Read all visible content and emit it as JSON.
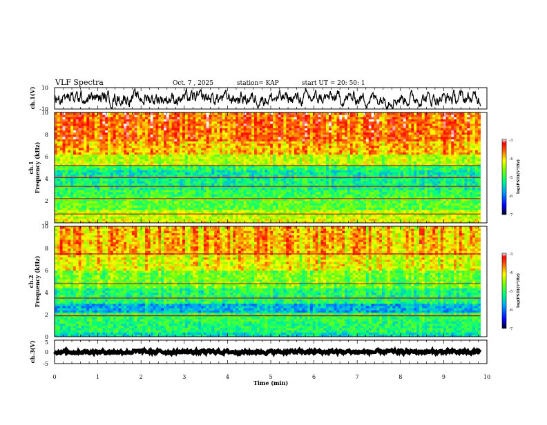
{
  "header": {
    "title": "VLF Spectra",
    "date": "Oct. 7 , 2025",
    "station": "station= KAP",
    "start": "start UT =  20: 50: 1"
  },
  "chart_data": [
    {
      "type": "line",
      "name": "ch1-waveform",
      "ylabel": "ch.1(V)",
      "ylim": [
        -10,
        10
      ],
      "yticks": [
        "10",
        "-10"
      ],
      "xlim": [
        0,
        10
      ],
      "data_end_min": 9.85,
      "series": [
        {
          "name": "ch.1",
          "description_mean": 0,
          "description_amplitude": 5
        }
      ]
    },
    {
      "type": "heatmap",
      "name": "ch1-spectrogram",
      "ylabel": "ch.1\nFrequency (kHz)",
      "ylabel_lines": [
        "ch.1",
        "Frequency (kHz)"
      ],
      "ylim": [
        0,
        10
      ],
      "yticks": [
        "0",
        "2",
        "4",
        "6",
        "8",
        "10"
      ],
      "xlim": [
        0,
        10
      ],
      "data_end_min": 9.85,
      "colorbar": {
        "label": "log(PSD)(V²/Hz)",
        "ticks": [
          "-3",
          "-4",
          "-5",
          "-6",
          "-7"
        ],
        "range": [
          -7,
          -3
        ]
      },
      "bands": [
        {
          "from": 0.0,
          "to": 0.5,
          "level": -4.2
        },
        {
          "from": 0.5,
          "to": 1.2,
          "level": -4.4
        },
        {
          "from": 1.2,
          "to": 2.4,
          "level": -4.8
        },
        {
          "from": 2.4,
          "to": 3.1,
          "level": -5.0
        },
        {
          "from": 3.1,
          "to": 4.0,
          "level": -5.2
        },
        {
          "from": 4.0,
          "to": 4.8,
          "level": -5.3
        },
        {
          "from": 4.8,
          "to": 5.3,
          "level": -5.0
        },
        {
          "from": 5.3,
          "to": 6.3,
          "level": -4.4
        },
        {
          "from": 6.3,
          "to": 7.5,
          "level": -3.9
        },
        {
          "from": 7.5,
          "to": 10.0,
          "level": -3.6
        }
      ],
      "lines_khz": [
        0.8,
        2.2,
        3.3,
        4.1,
        5.2
      ]
    },
    {
      "type": "heatmap",
      "name": "ch2-spectrogram",
      "ylabel_lines": [
        "ch.2",
        "Frequency (kHz)"
      ],
      "ylim": [
        0,
        10
      ],
      "yticks": [
        "0",
        "2",
        "4",
        "6",
        "8",
        "10"
      ],
      "xlim": [
        0,
        10
      ],
      "data_end_min": 9.85,
      "colorbar": {
        "label": "log(PSD)(V²/Hz)",
        "ticks": [
          "-3",
          "-4",
          "-5",
          "-6",
          "-7"
        ],
        "range": [
          -7,
          -3
        ]
      },
      "bands": [
        {
          "from": 0.0,
          "to": 0.4,
          "level": -5.4
        },
        {
          "from": 0.4,
          "to": 1.4,
          "level": -5.1
        },
        {
          "from": 1.4,
          "to": 2.2,
          "level": -5.0
        },
        {
          "from": 2.2,
          "to": 3.1,
          "level": -5.7
        },
        {
          "from": 3.1,
          "to": 4.5,
          "level": -5.1
        },
        {
          "from": 4.5,
          "to": 6.0,
          "level": -4.7
        },
        {
          "from": 6.0,
          "to": 7.5,
          "level": -4.2
        },
        {
          "from": 7.5,
          "to": 10.0,
          "level": -3.9
        }
      ],
      "lines_khz": [
        1.9,
        3.5,
        4.8,
        7.5
      ]
    },
    {
      "type": "line",
      "name": "ch3-waveform",
      "ylabel": "ch.3(V)",
      "ylim": [
        -5,
        5
      ],
      "yticks": [
        "5",
        "0",
        "-5"
      ],
      "xlim": [
        0,
        10
      ],
      "data_end_min": 9.85,
      "series": [
        {
          "name": "ch.3",
          "description_mean": 0,
          "description_amplitude": 0.6
        }
      ]
    }
  ],
  "xaxis": {
    "label": "Time  (min)",
    "ticks": [
      "0",
      "1",
      "2",
      "3",
      "4",
      "5",
      "6",
      "7",
      "8",
      "9",
      "10"
    ]
  }
}
